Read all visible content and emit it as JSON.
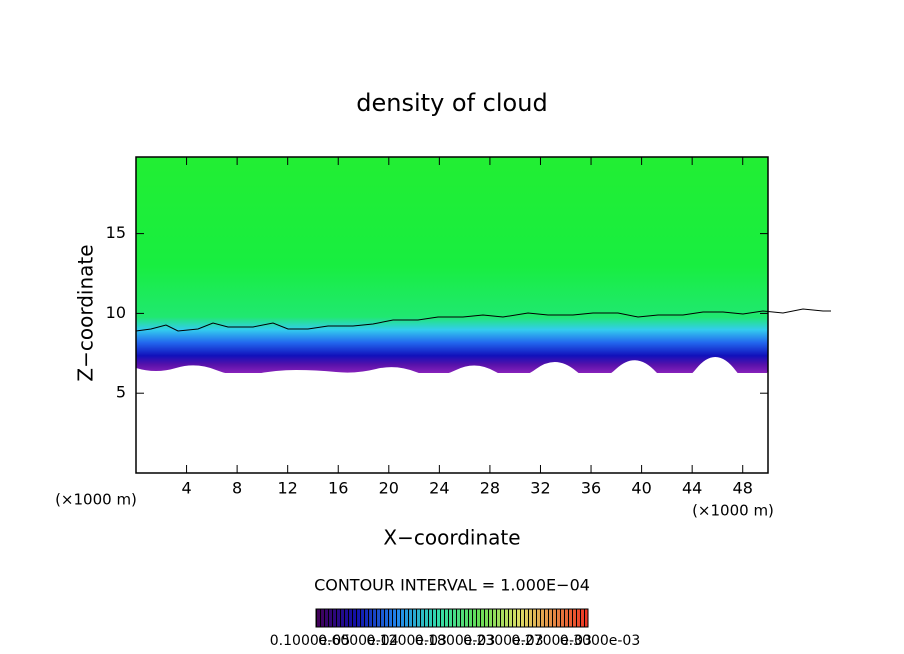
{
  "chart_data": {
    "type": "contour",
    "title": "density of cloud",
    "xlabel": "X−coordinate",
    "ylabel": "Z−coordinate",
    "x_unit": "(×1000 m)",
    "xlim": [
      0,
      50
    ],
    "xticks": [
      4,
      8,
      12,
      16,
      20,
      24,
      28,
      32,
      36,
      40,
      44,
      48
    ],
    "ylim": [
      0,
      19.8
    ],
    "yticks": [
      5,
      10,
      15
    ],
    "contour_interval": "CONTOUR INTERVAL = 1.000E−04",
    "colorbar_labels": [
      "0.1000e-05",
      "0.6000e-04",
      "0.1200e-03",
      "0.1800e-03",
      "0.2300e-03",
      "0.2700e-03",
      "0.3000e-03"
    ]
  }
}
